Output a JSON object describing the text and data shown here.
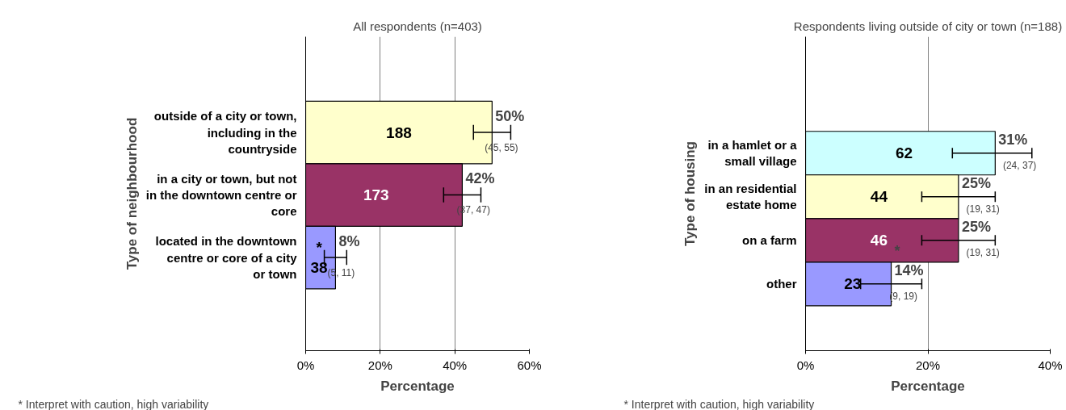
{
  "chart_data": [
    {
      "type": "bar",
      "orientation": "horizontal",
      "title": "All respondents (n=403)",
      "xlabel": "Percentage",
      "ylabel": "Type of neighbourhood",
      "categories": [
        "outside of a city or town, including in the countryside",
        "in a city or town, but not in the downtown centre or core",
        "located in the downtown centre or core of a city or town"
      ],
      "values": [
        50,
        42,
        8
      ],
      "colors": [
        "#ffffcc",
        "#993366",
        "#9999ff"
      ],
      "errors": [
        [
          45,
          55
        ],
        [
          37,
          47
        ],
        [
          5,
          11
        ]
      ],
      "value_labels": [
        "50%",
        "42%",
        "8%"
      ],
      "xlim": [
        0,
        60
      ],
      "xticks": [
        {
          "value": 0,
          "label": "0%"
        },
        {
          "value": 20,
          "label": "20%"
        },
        {
          "value": 40,
          "label": "40%"
        },
        {
          "value": 60,
          "label": "60%"
        }
      ],
      "grid": "x",
      "annotations": [
        "188",
        "173",
        "*\n38",
        {
          "text": "(45, 55)",
          "x": 52.5,
          "y": "outside of a city or town, including in the countryside"
        },
        {
          "text": "(37, 47)",
          "x": 45,
          "y": "in a city or town, but not in the downtown centre or core"
        },
        {
          "text": "(5, 11)",
          "x": 9.5,
          "y": "located in the downtown centre or core of a city or town"
        },
        "* Interpret with caution, high variability"
      ]
    },
    {
      "type": "bar",
      "orientation": "horizontal",
      "title": "Respondents living outside of city or town (n=188)",
      "xlabel": "Percentage",
      "ylabel": "Type of housing",
      "categories": [
        "in a hamlet or a small village",
        "in an residential estate home",
        "on a farm",
        "other"
      ],
      "values": [
        31,
        25,
        25,
        14
      ],
      "colors": [
        "#ccffff",
        "#ffffcc",
        "#993366",
        "#9999ff"
      ],
      "errors": [
        [
          24,
          37
        ],
        [
          19,
          31
        ],
        [
          19,
          31
        ],
        [
          9,
          19
        ]
      ],
      "value_labels": [
        "31%",
        "25%",
        "25%",
        "*\n14%"
      ],
      "xlim": [
        0,
        40
      ],
      "xticks": [
        {
          "value": 0,
          "label": "0%"
        },
        {
          "value": 20,
          "label": "20%"
        },
        {
          "value": 40,
          "label": "40%"
        }
      ],
      "grid": "x",
      "annotations": [
        "62",
        "44",
        "46",
        "23",
        {
          "text": "(24, 37)",
          "x": 35,
          "y": "in a hamlet or a small village"
        },
        {
          "text": "(19, 31)",
          "x": 29,
          "y": "in an residential estate home"
        },
        {
          "text": "(19, 31)",
          "x": 29,
          "y": "on a farm"
        },
        {
          "text": "(9, 19)",
          "x": 16,
          "y": "other"
        },
        "* Interpret with caution, high variability"
      ]
    }
  ]
}
